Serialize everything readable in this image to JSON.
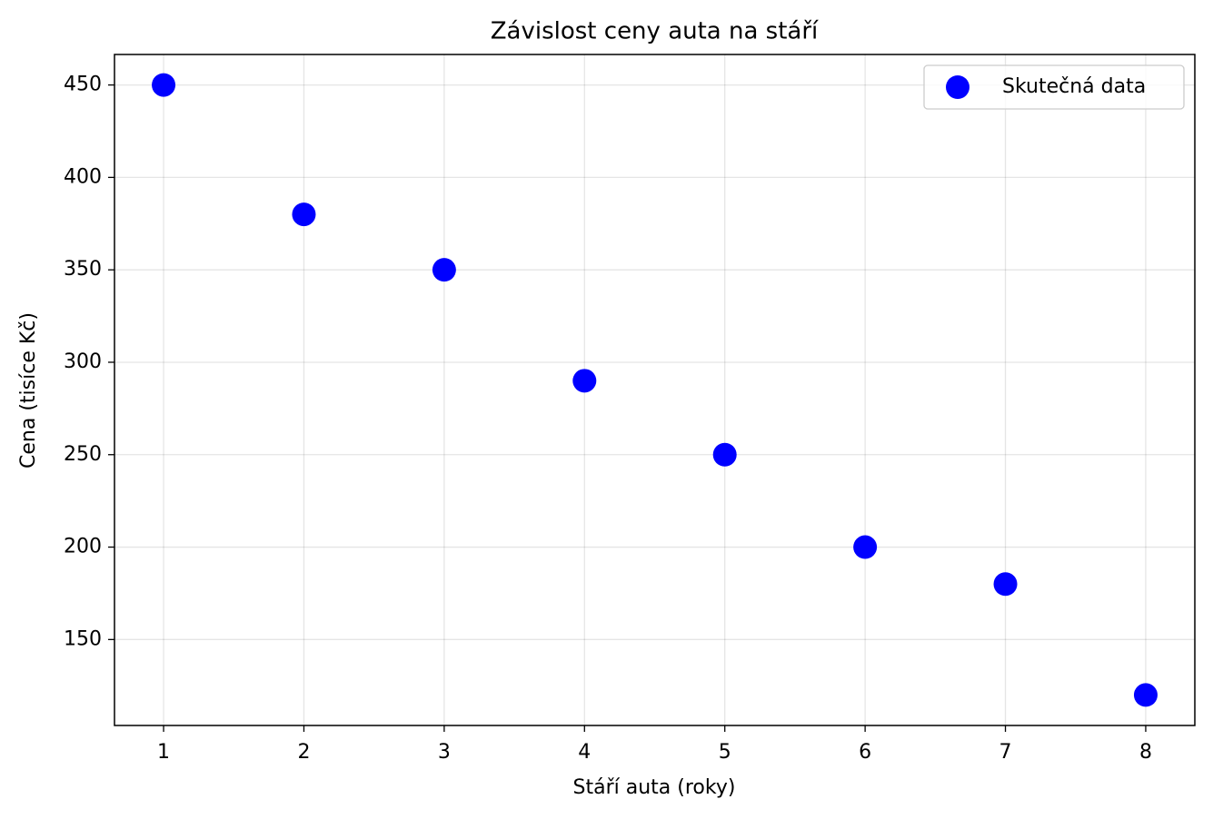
{
  "chart_data": {
    "type": "scatter",
    "title": "Závislost ceny auta na stáří",
    "x_label": "Stáří auta (roky)",
    "y_label": "Cena (tisíce Kč)",
    "x": [
      1,
      2,
      3,
      4,
      5,
      6,
      7,
      8
    ],
    "series": [
      {
        "name": "Skutečná data",
        "color": "#0000ff",
        "values": [
          450,
          380,
          350,
          290,
          250,
          200,
          180,
          120
        ]
      }
    ],
    "xlim": [
      0.65,
      8.35
    ],
    "ylim": [
      103.5,
      466.5
    ],
    "xticks": [
      1,
      2,
      3,
      4,
      5,
      6,
      7,
      8
    ],
    "yticks": [
      150,
      200,
      250,
      300,
      350,
      400,
      450
    ],
    "grid": true,
    "legend": "upper right"
  }
}
